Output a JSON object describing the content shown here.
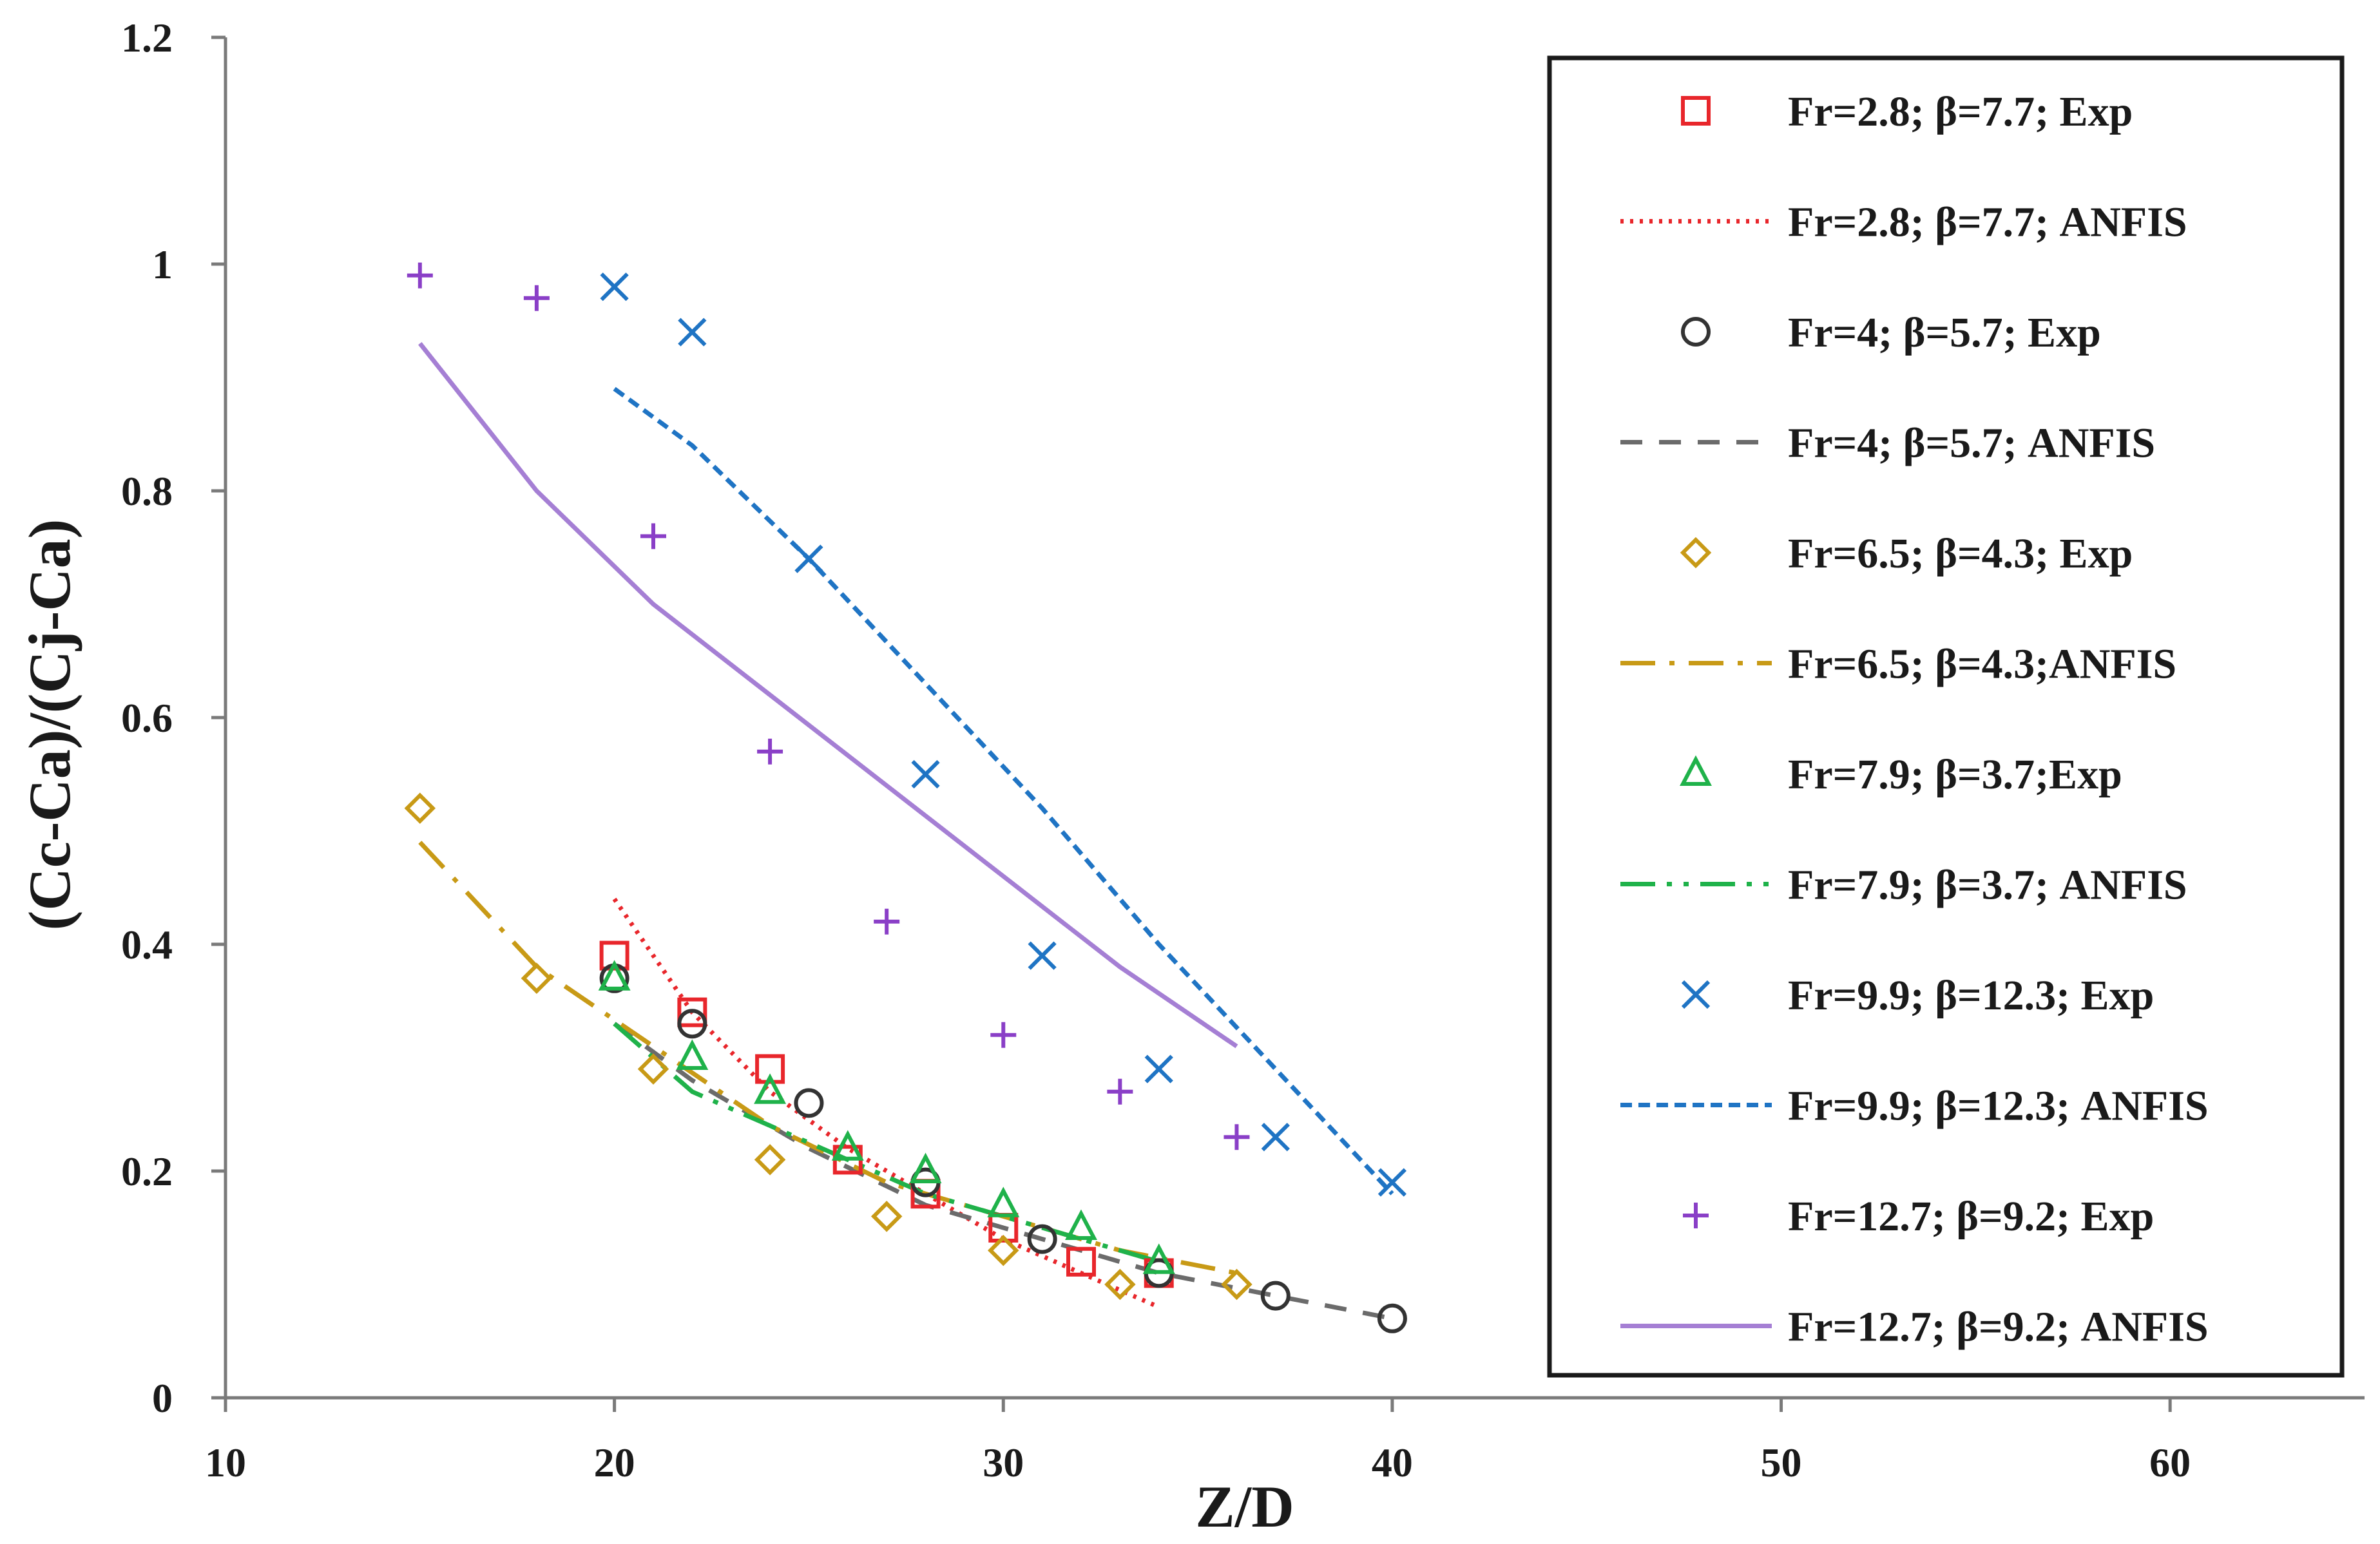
{
  "chart_data": {
    "type": "scatter",
    "title": "",
    "xlabel": "Z/D",
    "ylabel": "(Cc-Ca)/(Cj-Ca)",
    "xlim": [
      10,
      65
    ],
    "ylim": [
      0,
      1.2
    ],
    "xticks": [
      10,
      20,
      30,
      40,
      50,
      60
    ],
    "yticks": [
      0,
      0.2,
      0.4,
      0.6,
      0.8,
      1,
      1.2
    ],
    "xtick_labels": [
      "10",
      "20",
      "30",
      "40",
      "50",
      "60"
    ],
    "ytick_labels": [
      "0",
      "0.2",
      "0.4",
      "0.6",
      "0.8",
      "1",
      "1.2"
    ],
    "grid": false,
    "legend_position": "right",
    "series": [
      {
        "name": "Fr=2.8; β=7.7; Exp",
        "kind": "marker",
        "marker": "square",
        "color": "#e8262b",
        "x": [
          20,
          22,
          24,
          26,
          28,
          30,
          32,
          34
        ],
        "y": [
          0.39,
          0.34,
          0.29,
          0.21,
          0.18,
          0.15,
          0.12,
          0.11
        ]
      },
      {
        "name": "Fr=2.8; β=7.7; ANFIS",
        "kind": "line",
        "dash": "dotted",
        "color": "#e8262b",
        "x": [
          20,
          22,
          24,
          26,
          28,
          30,
          32,
          34
        ],
        "y": [
          0.44,
          0.34,
          0.27,
          0.22,
          0.18,
          0.14,
          0.11,
          0.08
        ]
      },
      {
        "name": "Fr=4; β=5.7; Exp",
        "kind": "marker",
        "marker": "circle",
        "color": "#333333",
        "x": [
          20,
          22,
          25,
          28,
          31,
          34,
          37,
          40
        ],
        "y": [
          0.37,
          0.33,
          0.26,
          0.19,
          0.14,
          0.11,
          0.09,
          0.07
        ]
      },
      {
        "name": "Fr=4; β=5.7; ANFIS",
        "kind": "line",
        "dash": "dashed",
        "color": "#6b6b6b",
        "x": [
          20,
          22,
          25,
          28,
          31,
          34,
          37,
          40
        ],
        "y": [
          0.33,
          0.28,
          0.22,
          0.17,
          0.14,
          0.11,
          0.09,
          0.07
        ]
      },
      {
        "name": "Fr=6.5; β=4.3; Exp",
        "kind": "marker",
        "marker": "diamond",
        "color": "#c89a16",
        "x": [
          15,
          18,
          21,
          24,
          27,
          30,
          33,
          36
        ],
        "y": [
          0.52,
          0.37,
          0.29,
          0.21,
          0.16,
          0.13,
          0.1,
          0.1
        ]
      },
      {
        "name": "Fr=6.5; β=4.3;ANFIS",
        "kind": "line",
        "dash": "dashdot",
        "color": "#c89a16",
        "x": [
          15,
          18,
          21,
          24,
          27,
          30,
          33,
          36
        ],
        "y": [
          0.49,
          0.38,
          0.31,
          0.24,
          0.19,
          0.16,
          0.13,
          0.11
        ]
      },
      {
        "name": "Fr=7.9; β=3.7;Exp",
        "kind": "marker",
        "marker": "triangle",
        "color": "#1fb24a",
        "x": [
          20,
          22,
          24,
          26,
          28,
          30,
          32,
          34
        ],
        "y": [
          0.37,
          0.3,
          0.27,
          0.22,
          0.2,
          0.17,
          0.15,
          0.12
        ]
      },
      {
        "name": "Fr=7.9; β=3.7; ANFIS",
        "kind": "line",
        "dash": "dashdotdot",
        "color": "#1fb24a",
        "x": [
          20,
          22,
          24,
          26,
          28,
          30,
          32,
          34
        ],
        "y": [
          0.33,
          0.27,
          0.24,
          0.21,
          0.18,
          0.16,
          0.14,
          0.12
        ]
      },
      {
        "name": "Fr=9.9; β=12.3; Exp",
        "kind": "marker",
        "marker": "x",
        "color": "#1f74c4",
        "x": [
          20,
          22,
          25,
          28,
          31,
          34,
          37,
          40
        ],
        "y": [
          0.98,
          0.94,
          0.74,
          0.55,
          0.39,
          0.29,
          0.23,
          0.19
        ]
      },
      {
        "name": "Fr=9.9; β=12.3; ANFIS",
        "kind": "line",
        "dash": "shortdash",
        "color": "#1f74c4",
        "x": [
          20,
          22,
          25,
          28,
          31,
          34,
          37,
          40
        ],
        "y": [
          0.89,
          0.84,
          0.74,
          0.63,
          0.52,
          0.4,
          0.29,
          0.18
        ]
      },
      {
        "name": "Fr=12.7; β=9.2; Exp",
        "kind": "marker",
        "marker": "plus",
        "color": "#8a3fc7",
        "x": [
          15,
          18,
          21,
          24,
          27,
          30,
          33,
          36
        ],
        "y": [
          0.99,
          0.97,
          0.76,
          0.57,
          0.42,
          0.32,
          0.27,
          0.23
        ]
      },
      {
        "name": "Fr=12.7; β=9.2; ANFIS",
        "kind": "line",
        "dash": "solid",
        "color": "#a57fd4",
        "x": [
          15,
          18,
          21,
          24,
          27,
          30,
          33,
          36
        ],
        "y": [
          0.93,
          0.8,
          0.7,
          0.62,
          0.54,
          0.46,
          0.38,
          0.31
        ]
      }
    ]
  }
}
